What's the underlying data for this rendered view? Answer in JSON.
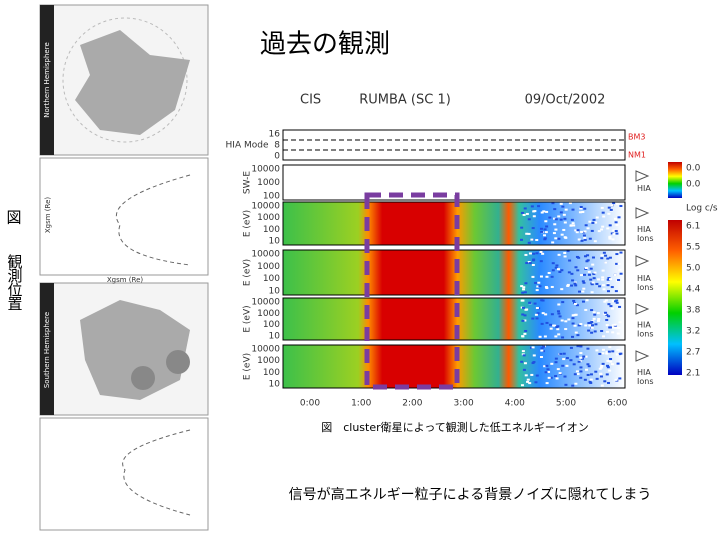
{
  "title": "過去の観測",
  "side_label": [
    "図",
    "観測位置"
  ],
  "orbit_plots": {
    "north": "Northern Hemisphere",
    "south": "Southern Hemisphere",
    "x_axis": "Xgsm (Re)",
    "y_axis": "Xgsm (Re)"
  },
  "spectrogram": {
    "header": [
      "CIS",
      "RUMBA (SC 1)",
      "09/Oct/2002"
    ],
    "panels": [
      {
        "label": "HIA Mode",
        "ticks": [
          "16",
          "8",
          "0"
        ],
        "right": [
          "BM3",
          "NM1"
        ]
      },
      {
        "label": "SW-E",
        "ticks": [
          "10000",
          "1000",
          "100"
        ],
        "right": [
          "HIA"
        ]
      },
      {
        "label": "E (eV)",
        "ticks": [
          "10000",
          "1000",
          "100",
          "10"
        ],
        "right": [
          "HIA",
          "Ions"
        ]
      },
      {
        "label": "E (eV)",
        "ticks": [
          "10000",
          "1000",
          "100",
          "10"
        ],
        "right": [
          "HIA",
          "Ions"
        ]
      },
      {
        "label": "E (eV)",
        "ticks": [
          "10000",
          "1000",
          "100",
          "10"
        ],
        "right": [
          "HIA",
          "Ions"
        ]
      },
      {
        "label": "E (eV)",
        "ticks": [
          "10000",
          "1000",
          "100",
          "10"
        ],
        "right": [
          "HIA",
          "Ions"
        ]
      }
    ],
    "time_ticks": [
      "0:00",
      "1:00",
      "2:00",
      "3:00",
      "4:00",
      "5:00",
      "6:00"
    ],
    "colorbar_small": [
      "0.0",
      "0.0"
    ],
    "colorbar_unit": "Log c/s",
    "colorbar_labels": [
      "6.1",
      "5.5",
      "5.0",
      "4.4",
      "3.8",
      "3.2",
      "2.7",
      "2.1"
    ]
  },
  "caption": "図　cluster衛星によって観測した低エネルギーイオン",
  "footer": "信号が高エネルギー粒子による背景ノイズに隠れてしまう"
}
